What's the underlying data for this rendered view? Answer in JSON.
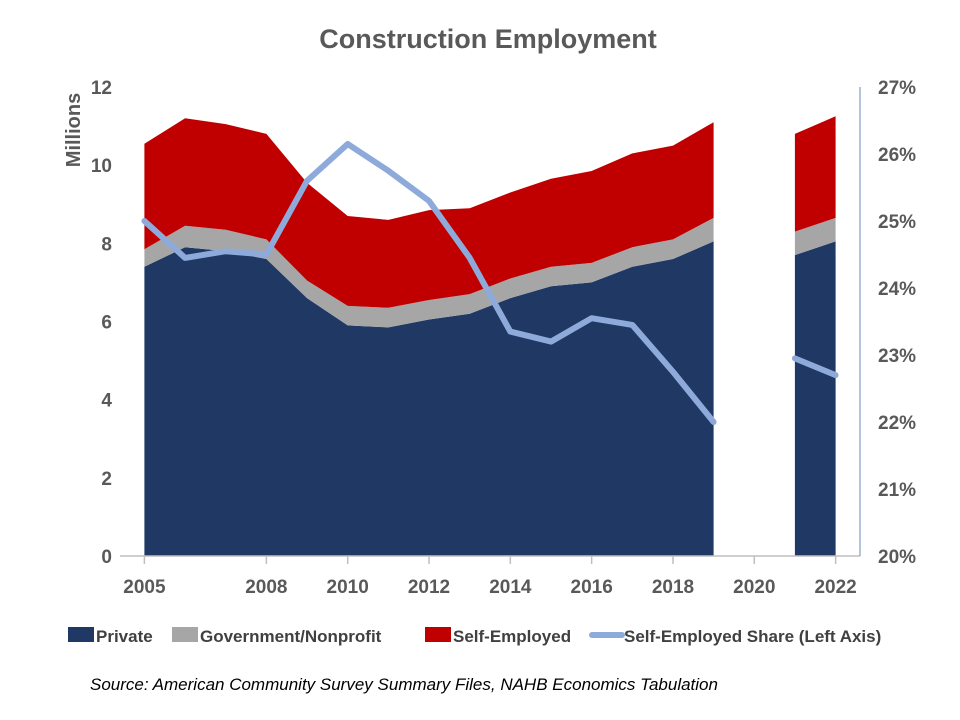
{
  "chart_data": {
    "type": "area",
    "title": "Construction Employment",
    "ylabel": "Millions",
    "y2label": "",
    "ylim": [
      0,
      12
    ],
    "y2lim": [
      0.2,
      0.27
    ],
    "yticks": [
      "0",
      "2",
      "4",
      "6",
      "8",
      "10",
      "12"
    ],
    "y2ticks": [
      "20%",
      "21%",
      "22%",
      "23%",
      "24%",
      "25%",
      "26%",
      "27%"
    ],
    "xticks": [
      "2005",
      "2008",
      "2010",
      "2012",
      "2014",
      "2016",
      "2018",
      "2020",
      "2022"
    ],
    "x": [
      2005,
      2006,
      2007,
      2008,
      2009,
      2010,
      2011,
      2012,
      2013,
      2014,
      2015,
      2016,
      2017,
      2018,
      2019,
      2020,
      2021,
      2022
    ],
    "series": [
      {
        "name": "Private",
        "type": "area",
        "color": "#1f3864",
        "values": [
          7.4,
          7.9,
          7.8,
          7.6,
          6.6,
          5.9,
          5.85,
          6.05,
          6.2,
          6.6,
          6.9,
          7.0,
          7.4,
          7.6,
          8.05,
          null,
          7.7,
          8.05
        ]
      },
      {
        "name": "Government/Nonprofit",
        "type": "area",
        "color": "#a6a6a6",
        "values": [
          0.45,
          0.55,
          0.55,
          0.5,
          0.45,
          0.5,
          0.5,
          0.5,
          0.5,
          0.5,
          0.5,
          0.5,
          0.5,
          0.5,
          0.6,
          null,
          0.6,
          0.6
        ]
      },
      {
        "name": "Self-Employed",
        "type": "area",
        "color": "#c00000",
        "values": [
          2.7,
          2.75,
          2.7,
          2.7,
          2.5,
          2.3,
          2.25,
          2.3,
          2.2,
          2.2,
          2.25,
          2.35,
          2.4,
          2.4,
          2.45,
          null,
          2.5,
          2.6
        ]
      },
      {
        "name": "Self-Employed Share (Left Axis)",
        "type": "line",
        "color": "#8eaadb",
        "values": [
          0.25,
          0.2445,
          0.2455,
          0.245,
          0.256,
          0.2615,
          0.2575,
          0.253,
          0.2445,
          0.2335,
          0.232,
          0.2355,
          0.2345,
          0.2275,
          0.22,
          null,
          0.2295,
          0.227
        ]
      }
    ],
    "legend_position": "bottom",
    "grid": false
  },
  "source": "Source: American Community Survey Summary Files, NAHB Economics Tabulation"
}
